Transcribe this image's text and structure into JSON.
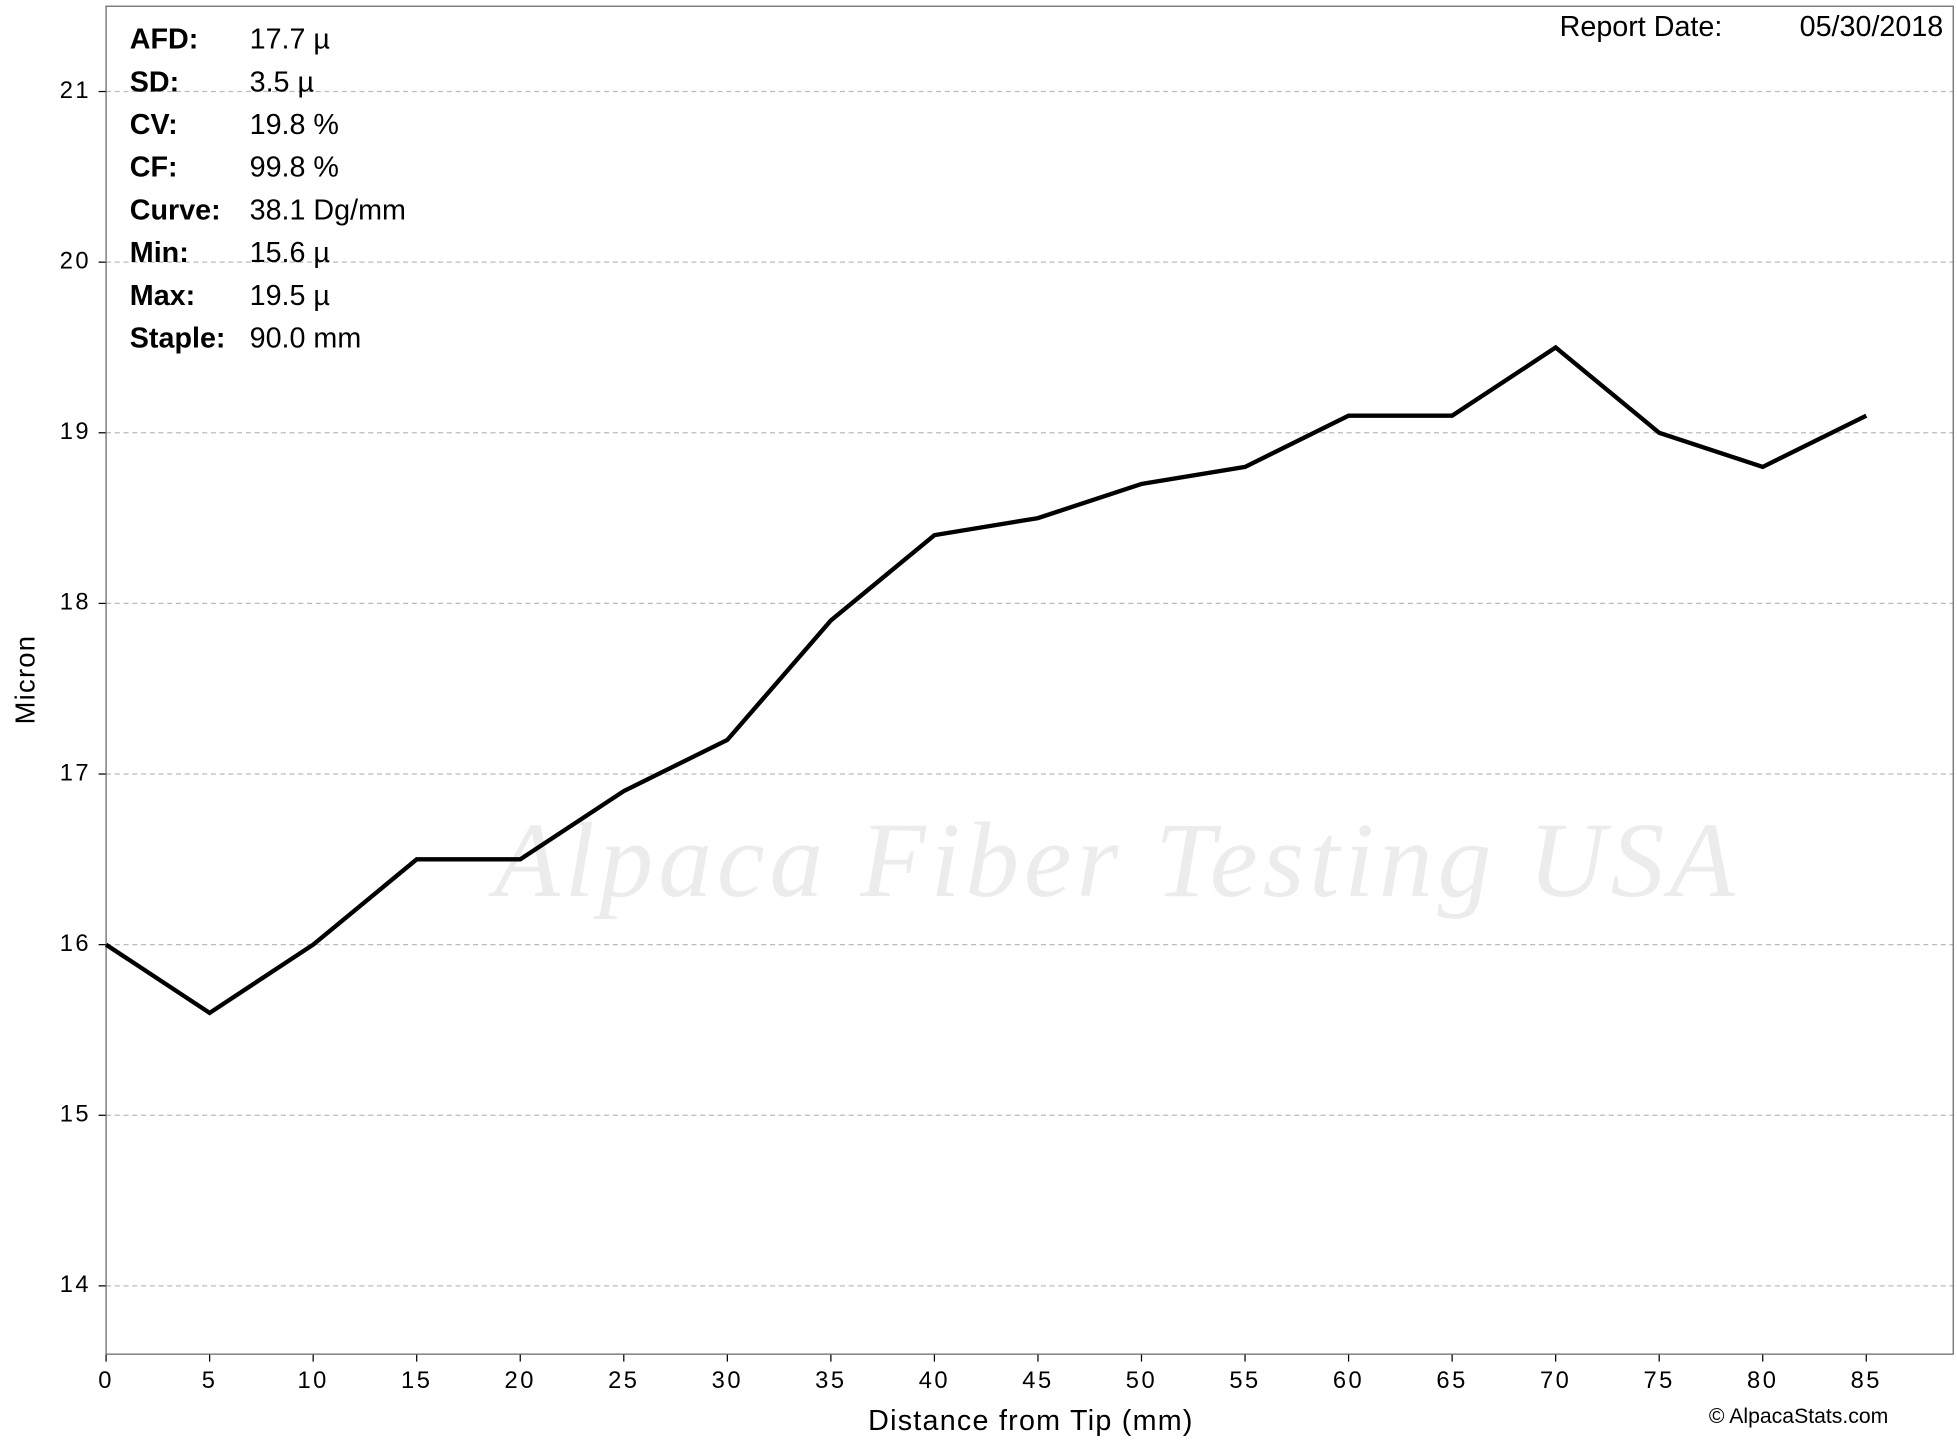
{
  "chart_data": {
    "type": "line",
    "x_label": "Distance from Tip (mm)",
    "y_label": "Micron",
    "x": [
      0,
      5,
      10,
      15,
      20,
      25,
      30,
      35,
      40,
      45,
      50,
      55,
      60,
      65,
      70,
      75,
      80,
      85
    ],
    "series": [
      {
        "name": "Micron",
        "color": "#000000",
        "values": [
          16.0,
          15.6,
          16.0,
          16.5,
          16.5,
          16.9,
          17.2,
          17.9,
          18.4,
          18.5,
          18.7,
          18.8,
          19.1,
          19.1,
          19.5,
          19.0,
          18.8,
          19.1
        ]
      }
    ],
    "xlim": [
      0,
      89.2
    ],
    "xticks": [
      0,
      5,
      10,
      15,
      20,
      25,
      30,
      35,
      40,
      45,
      50,
      55,
      60,
      65,
      70,
      75,
      80,
      85
    ],
    "ylim": [
      13.6,
      21.5
    ],
    "yticks": [
      14,
      15,
      16,
      17,
      18,
      19,
      20,
      21
    ],
    "grid": true,
    "stats": [
      {
        "label": "AFD:",
        "value": "17.7 µ"
      },
      {
        "label": "SD:",
        "value": "3.5 µ"
      },
      {
        "label": "CV:",
        "value": "19.8 %"
      },
      {
        "label": "CF:",
        "value": "99.8 %"
      },
      {
        "label": "Curve:",
        "value": "38.1 Dg/mm"
      },
      {
        "label": "Min:",
        "value": "15.6 µ"
      },
      {
        "label": "Max:",
        "value": "19.5 µ"
      },
      {
        "label": "Staple:",
        "value": "90.0 mm"
      }
    ],
    "report_date_label": "Report Date:",
    "report_date": "05/30/2018",
    "watermark": "Alpaca Fiber Testing USA",
    "copyright": "© AlpacaStats.com"
  }
}
